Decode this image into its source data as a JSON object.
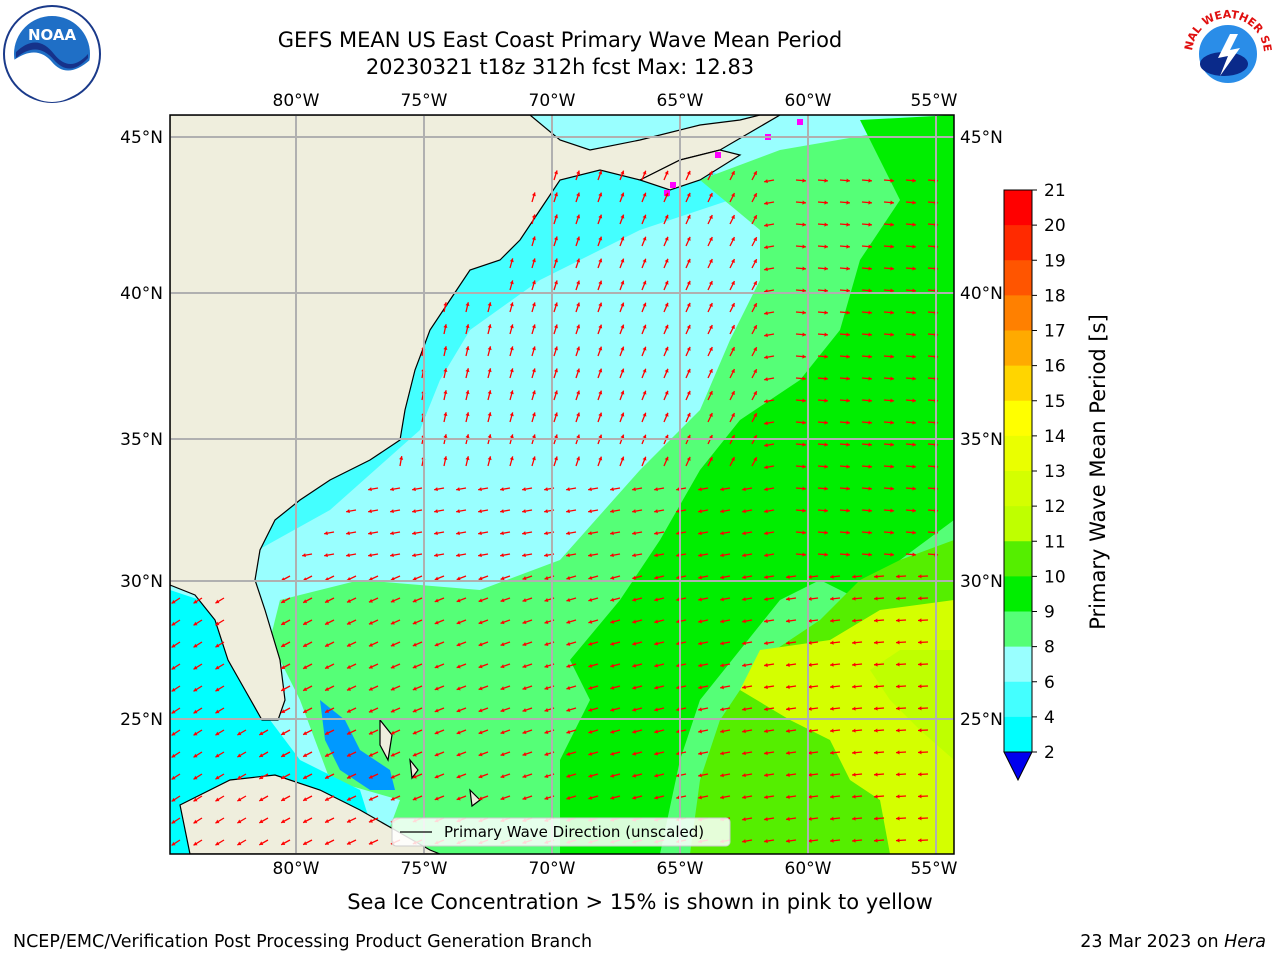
{
  "header": {
    "title_line1": "GEFS MEAN US East Coast Primary Wave Mean Period",
    "title_line2": "20230321 t18z 312h fcst   Max: 12.83"
  },
  "map": {
    "lon_ticks": [
      "80°W",
      "75°W",
      "70°W",
      "65°W",
      "60°W",
      "55°W"
    ],
    "lat_ticks": [
      "45°N",
      "40°N",
      "35°N",
      "30°N",
      "25°N"
    ],
    "legend_label": "Primary Wave Direction (unscaled)",
    "arrow_color": "#ff0000",
    "land_color": "#efeedd",
    "ice_marker_color": "#ff00ff"
  },
  "colorbar": {
    "label": "Primary Wave Mean Period [s]",
    "ticks": [
      "21",
      "20",
      "19",
      "18",
      "17",
      "16",
      "15",
      "14",
      "13",
      "12",
      "11",
      "10",
      "9",
      "8",
      "6",
      "4",
      "2"
    ],
    "colors": [
      "#ff0000",
      "#ff2a00",
      "#ff5500",
      "#ff8000",
      "#ffaa00",
      "#ffd500",
      "#ffff00",
      "#eaff00",
      "#d4ff00",
      "#bfff00",
      "#55ee00",
      "#00ee00",
      "#55ff77",
      "#99ffff",
      "#44ffff",
      "#00ffff",
      "#0099ff",
      "#0066ff"
    ],
    "extend_color": "#0000ee"
  },
  "footer": {
    "footnote": "Sea Ice Concentration > 15% is shown in pink to yellow",
    "credit_left": "NCEP/EMC/Verification Post Processing Product Generation Branch",
    "credit_date": "23 Mar 2023 on ",
    "credit_host": "Hera"
  },
  "logos": {
    "noaa_text": "NOAA",
    "nws_text": "NATIONAL WEATHER SERVICE"
  }
}
